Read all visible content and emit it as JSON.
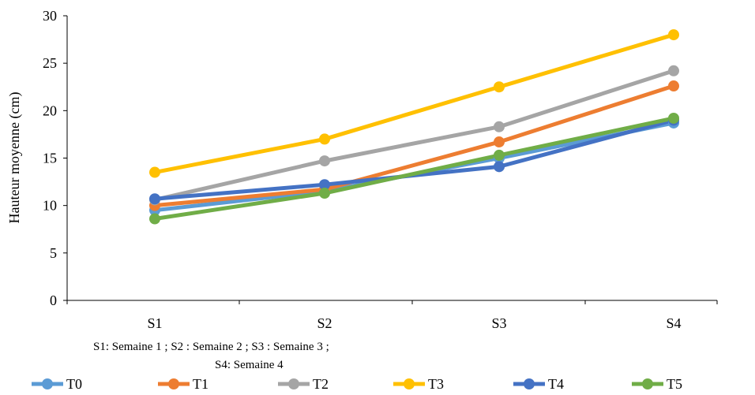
{
  "chart_data": {
    "type": "line",
    "categories": [
      "S1",
      "S2",
      "S3",
      "S4"
    ],
    "ylabel": "Hauteur moyenne (cm)",
    "xlabel": "",
    "ylim": [
      0,
      30
    ],
    "yticks": [
      0,
      5,
      10,
      15,
      20,
      25,
      30
    ],
    "grid": false,
    "legend_position": "bottom",
    "note_lines": [
      "S1: Semaine 1 ; S2 : Semaine 2 ; S3 : Semaine 3 ;",
      "S4: Semaine 4"
    ],
    "series": [
      {
        "name": "T0",
        "color": "#5b9bd5",
        "values": [
          9.5,
          11.5,
          15.0,
          18.7
        ]
      },
      {
        "name": "T1",
        "color": "#ed7d31",
        "values": [
          10.0,
          11.7,
          16.7,
          22.6
        ]
      },
      {
        "name": "T2",
        "color": "#a5a5a5",
        "values": [
          10.6,
          14.7,
          18.3,
          24.2
        ]
      },
      {
        "name": "T3",
        "color": "#ffc000",
        "values": [
          13.5,
          17.0,
          22.5,
          28.0
        ]
      },
      {
        "name": "T4",
        "color": "#4472c4",
        "values": [
          10.7,
          12.2,
          14.1,
          19.0
        ]
      },
      {
        "name": "T5",
        "color": "#70ad47",
        "values": [
          8.6,
          11.3,
          15.3,
          19.2
        ]
      }
    ]
  }
}
